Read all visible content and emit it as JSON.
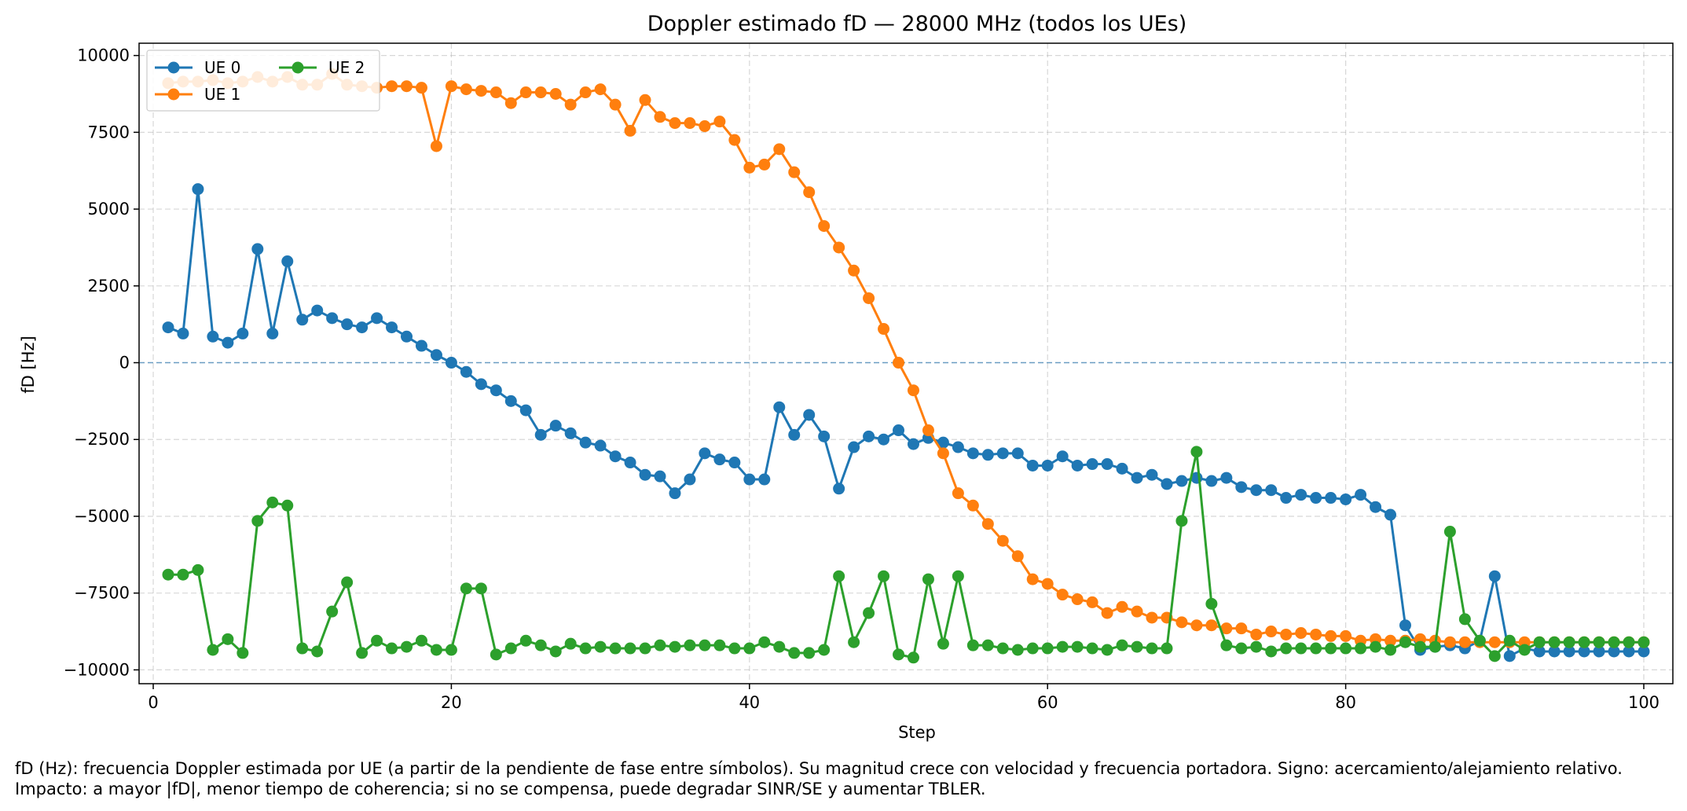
{
  "chart_data": {
    "type": "line",
    "title": "Doppler estimado fD — 28000 MHz (todos los UEs)",
    "xlabel": "Step",
    "ylabel": "fD [Hz]",
    "xlim": [
      -0.95,
      101.95
    ],
    "ylim": [
      -10450,
      10400
    ],
    "xticks": [
      0,
      20,
      40,
      60,
      80,
      100
    ],
    "yticks": [
      -10000,
      -7500,
      -5000,
      -2500,
      0,
      2500,
      5000,
      7500,
      10000
    ],
    "xtick_labels": [
      "0",
      "20",
      "40",
      "60",
      "80",
      "100"
    ],
    "ytick_labels": [
      "−10000",
      "−7500",
      "−5000",
      "−2500",
      "0",
      "2500",
      "5000",
      "7500",
      "10000"
    ],
    "grid": true,
    "reference_line": 0,
    "legend_position": "top-left",
    "x": [
      1,
      2,
      3,
      4,
      5,
      6,
      7,
      8,
      9,
      10,
      11,
      12,
      13,
      14,
      15,
      16,
      17,
      18,
      19,
      20,
      21,
      22,
      23,
      24,
      25,
      26,
      27,
      28,
      29,
      30,
      31,
      32,
      33,
      34,
      35,
      36,
      37,
      38,
      39,
      40,
      41,
      42,
      43,
      44,
      45,
      46,
      47,
      48,
      49,
      50,
      51,
      52,
      53,
      54,
      55,
      56,
      57,
      58,
      59,
      60,
      61,
      62,
      63,
      64,
      65,
      66,
      67,
      68,
      69,
      70,
      71,
      72,
      73,
      74,
      75,
      76,
      77,
      78,
      79,
      80,
      81,
      82,
      83,
      84,
      85,
      86,
      87,
      88,
      89,
      90,
      91,
      92,
      93,
      94,
      95,
      96,
      97,
      98,
      99,
      100
    ],
    "series": [
      {
        "name": "UE 0",
        "color": "#1f77b4",
        "values": [
          1150,
          950,
          5650,
          850,
          650,
          950,
          3700,
          950,
          3300,
          1400,
          1700,
          1450,
          1250,
          1150,
          1450,
          1150,
          850,
          550,
          250,
          0,
          -300,
          -700,
          -900,
          -1250,
          -1550,
          -2350,
          -2050,
          -2300,
          -2600,
          -2700,
          -3050,
          -3250,
          -3650,
          -3700,
          -4250,
          -3800,
          -2950,
          -3150,
          -3250,
          -3800,
          -3800,
          -1450,
          -2350,
          -1700,
          -2400,
          -4100,
          -2750,
          -2400,
          -2500,
          -2200,
          -2650,
          -2450,
          -2600,
          -2750,
          -2950,
          -3000,
          -2950,
          -2950,
          -3350,
          -3350,
          -3050,
          -3350,
          -3300,
          -3300,
          -3450,
          -3750,
          -3650,
          -3950,
          -3850,
          -3750,
          -3850,
          -3750,
          -4050,
          -4150,
          -4150,
          -4400,
          -4300,
          -4400,
          -4400,
          -4450,
          -4300,
          -4700,
          -4950,
          -8550,
          -9350,
          -9250,
          -9200,
          -9300,
          -9050,
          -6950,
          -9550,
          -9300,
          -9400,
          -9400,
          -9400,
          -9400,
          -9400,
          -9400,
          -9400,
          -9400
        ]
      },
      {
        "name": "UE 1",
        "color": "#ff7f0e",
        "values": [
          9100,
          9150,
          9150,
          9200,
          9100,
          9150,
          9300,
          9150,
          9300,
          9050,
          9050,
          9400,
          9050,
          9000,
          8950,
          9000,
          9000,
          8950,
          7050,
          9000,
          8900,
          8850,
          8800,
          8450,
          8800,
          8800,
          8750,
          8400,
          8800,
          8900,
          8400,
          7550,
          8550,
          8000,
          7800,
          7800,
          7700,
          7850,
          7250,
          6350,
          6450,
          6950,
          6200,
          5550,
          4450,
          3750,
          3000,
          2100,
          1100,
          0,
          -900,
          -2200,
          -2950,
          -4250,
          -4650,
          -5250,
          -5800,
          -6300,
          -7050,
          -7200,
          -7550,
          -7700,
          -7800,
          -8150,
          -7950,
          -8100,
          -8300,
          -8300,
          -8450,
          -8550,
          -8550,
          -8650,
          -8650,
          -8850,
          -8750,
          -8850,
          -8800,
          -8850,
          -8900,
          -8900,
          -9050,
          -9000,
          -9050,
          -9050,
          -9000,
          -9050,
          -9100,
          -9100,
          -9100,
          -9100,
          -9100,
          -9100,
          -9100,
          -9100,
          -9100,
          -9100,
          -9100,
          -9100,
          -9100,
          -9100
        ]
      },
      {
        "name": "UE 2",
        "color": "#2ca02c",
        "values": [
          -6900,
          -6900,
          -6750,
          -9350,
          -9000,
          -9450,
          -5150,
          -4550,
          -4650,
          -9300,
          -9400,
          -8100,
          -7150,
          -9450,
          -9050,
          -9300,
          -9250,
          -9050,
          -9350,
          -9350,
          -7350,
          -7350,
          -9500,
          -9300,
          -9050,
          -9200,
          -9400,
          -9150,
          -9300,
          -9250,
          -9300,
          -9300,
          -9300,
          -9200,
          -9250,
          -9200,
          -9200,
          -9200,
          -9300,
          -9300,
          -9100,
          -9250,
          -9450,
          -9450,
          -9350,
          -6950,
          -9100,
          -8150,
          -6950,
          -9500,
          -9600,
          -7050,
          -9150,
          -6950,
          -9200,
          -9200,
          -9300,
          -9350,
          -9300,
          -9300,
          -9250,
          -9250,
          -9300,
          -9350,
          -9200,
          -9250,
          -9300,
          -9300,
          -5150,
          -2900,
          -7850,
          -9200,
          -9300,
          -9250,
          -9400,
          -9300,
          -9300,
          -9300,
          -9300,
          -9300,
          -9300,
          -9250,
          -9350,
          -9100,
          -9250,
          -9250,
          -5500,
          -8350,
          -9050,
          -9550,
          -9050,
          -9350,
          -9100,
          -9100,
          -9100,
          -9100,
          -9100,
          -9100,
          -9100,
          -9100
        ]
      }
    ]
  },
  "caption": "fD (Hz): frecuencia Doppler estimada por UE (a partir de la pendiente de fase entre símbolos). Su magnitud crece con velocidad y frecuencia portadora. Signo: acercamiento/alejamiento relativo. Impacto: a mayor |fD|, menor tiempo de coherencia; si no se compensa, puede degradar SINR/SE y aumentar TBLER."
}
